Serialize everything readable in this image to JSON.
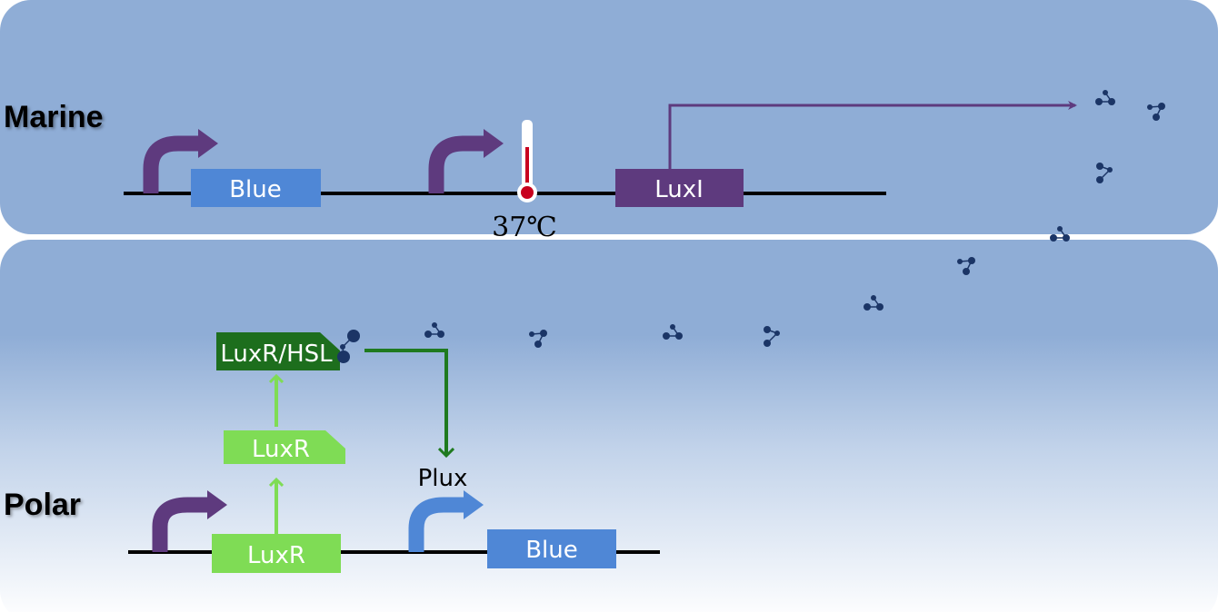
{
  "sections": {
    "marine": {
      "label": "Marine"
    },
    "polar": {
      "label": "Polar"
    }
  },
  "marine": {
    "genes": {
      "blue": "Blue",
      "luxi": "LuxI"
    },
    "temperature": "37℃"
  },
  "polar": {
    "genes": {
      "luxr": "LuxR",
      "blue": "Blue"
    },
    "protein": "LuxR",
    "complex": "LuxR/HSL",
    "promoter": "Plux"
  },
  "colors": {
    "marine_bg": "#8fadd6",
    "promoter_purple": "#5e3a7e",
    "blue_gene": "#4f87d6",
    "luxi": "#5e3a7e",
    "luxr_light": "#7fdc55",
    "complex_dark": "#1d6e1d",
    "arrow_green": "#1f7a1f",
    "molecule": "#1b3566",
    "thermometer_red": "#c8001e"
  },
  "icons": [
    "promoter-arrow-icon",
    "thermometer-icon",
    "hsl-molecule-icon"
  ]
}
